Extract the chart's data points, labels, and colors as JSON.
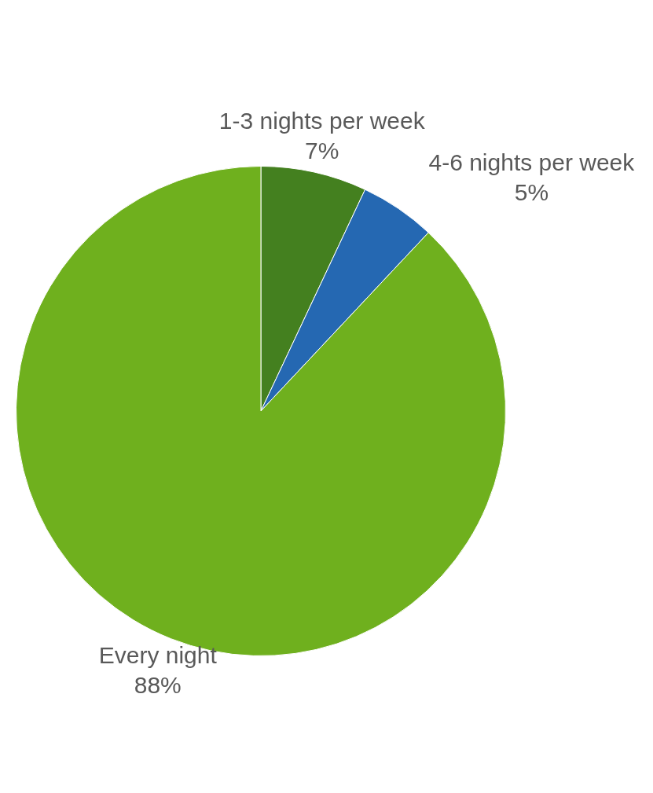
{
  "chart_data": {
    "type": "pie",
    "categories": [
      "1-3 nights per week",
      "4-6 nights per week",
      "Every night"
    ],
    "values": [
      7,
      5,
      88
    ],
    "colors": [
      "#44801f",
      "#2568b2",
      "#6fb01e"
    ],
    "value_labels": [
      "7%",
      "5%",
      "88%"
    ],
    "legend": false
  }
}
